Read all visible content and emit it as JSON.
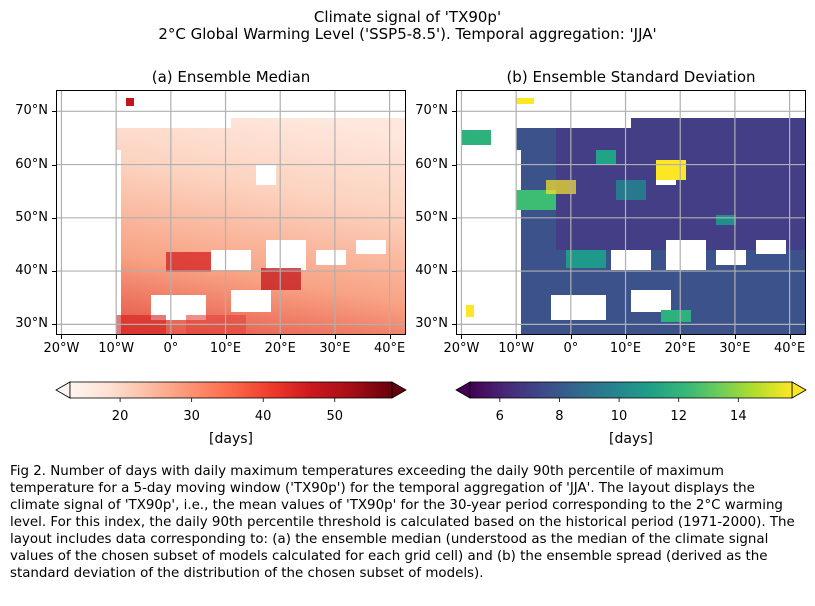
{
  "figure": {
    "title_line1": "Climate signal of 'TX90p'",
    "title_line2": "2°C Global Warming Level ('SSP5-8.5'). Temporal aggregation: 'JJA'"
  },
  "panels": [
    {
      "title": "(a) Ensemble Median",
      "colormap": "Reds",
      "colorbar": {
        "ticks": [
          "20",
          "30",
          "40",
          "50"
        ],
        "tick_values": [
          20,
          30,
          40,
          50
        ],
        "range": [
          13,
          58
        ],
        "extend": "both",
        "label": "[days]"
      }
    },
    {
      "title": "(b) Ensemble Standard Deviation",
      "colormap": "viridis",
      "colorbar": {
        "ticks": [
          "6",
          "8",
          "10",
          "12",
          "14"
        ],
        "tick_values": [
          6,
          8,
          10,
          12,
          14
        ],
        "range": [
          5,
          15.8
        ],
        "extend": "both",
        "label": "[days]"
      }
    }
  ],
  "map": {
    "lon_range": [
      -21,
      43
    ],
    "lat_range": [
      28,
      74
    ],
    "lat_ticks": [
      "70°N",
      "60°N",
      "50°N",
      "40°N",
      "30°N"
    ],
    "lat_tick_values": [
      70,
      60,
      50,
      40,
      30
    ],
    "lon_ticks": [
      "20°W",
      "10°W",
      "0°",
      "10°E",
      "20°E",
      "30°E",
      "40°E"
    ],
    "lon_tick_values": [
      -20,
      -10,
      0,
      10,
      20,
      30,
      40
    ],
    "gridlines": true
  },
  "caption": "Fig 2. Number of days with daily maximum temperatures exceeding the daily 90th percentile of maximum temperature for a 5-day moving window ('TX90p') for the temporal aggregation of 'JJA'. The layout displays the climate signal of 'TX90p', i.e., the mean values of 'TX90p' for the 30-year period corresponding to the 2°C warming level. For this index,  the daily 90th percentile threshold is calculated based on the historical period (1971-2000). The layout includes data corresponding to: (a) the ensemble median (understood as the median of the climate signal values of the chosen subset of models calculated for each grid cell) and (b) the ensemble spread (derived as the standard deviation of the distribution of the chosen subset of models)."
}
